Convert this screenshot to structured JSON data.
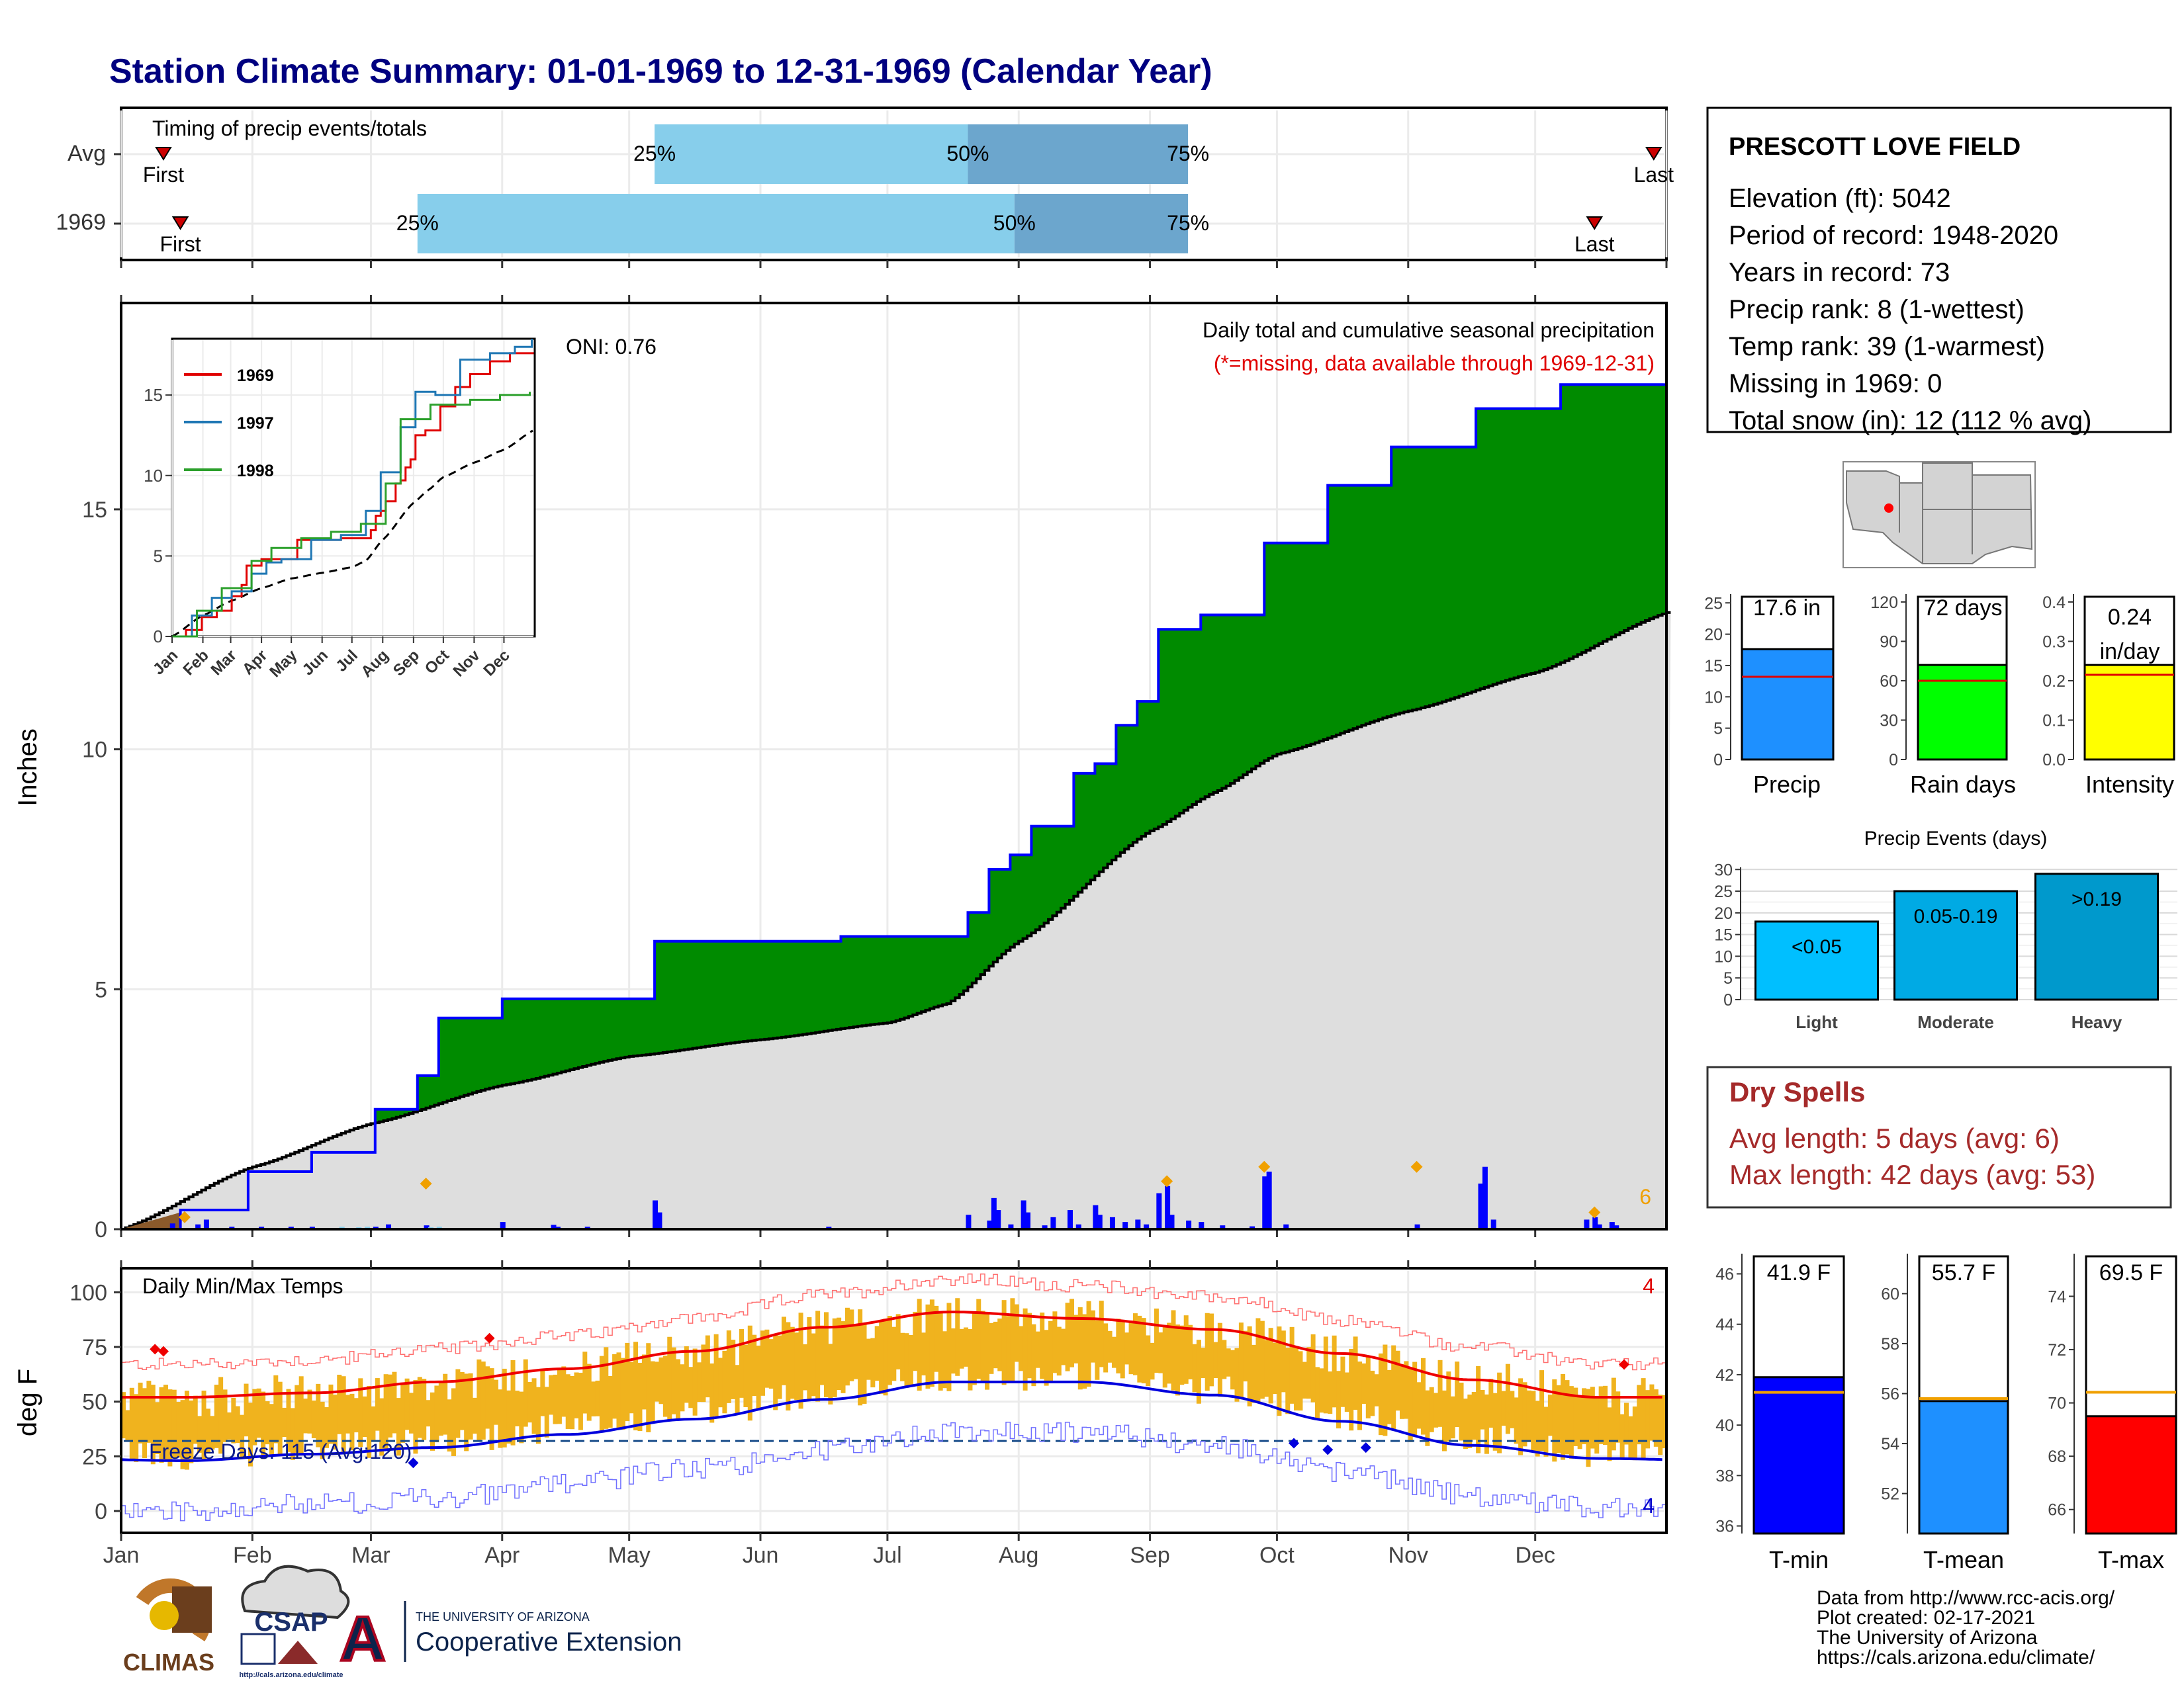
{
  "title": "Station Climate Summary: 01-01-1969 to 12-31-1969 (Calendar Year)",
  "colors": {
    "title": "#000080",
    "q_light": "#87CEEB",
    "q_dark": "#6CA6CD",
    "green": "#008B00",
    "blue_outline": "#0000FF",
    "grey_fill": "#DEDEDE",
    "orange": "#F0B31E",
    "dry_red": "#A52A2A"
  },
  "months": [
    "Jan",
    "Feb",
    "Mar",
    "Apr",
    "May",
    "Jun",
    "Jul",
    "Aug",
    "Sep",
    "Oct",
    "Nov",
    "Dec"
  ],
  "timing": {
    "header": "Timing of precip events/totals",
    "rows": [
      {
        "label": "Avg",
        "first": "First",
        "last": "Last",
        "p25": "25%",
        "p50": "50%",
        "p75": "75%",
        "first_day": 10,
        "last_day": 362,
        "p25_day": 126,
        "p50_day": 200,
        "p75_day": 252
      },
      {
        "label": "1969",
        "first": "First",
        "last": "Last",
        "p25": "25%",
        "p50": "50%",
        "p75": "75%",
        "first_day": 14,
        "last_day": 348,
        "p25_day": 70,
        "p50_day": 211,
        "p75_day": 252
      }
    ]
  },
  "main": {
    "ylabel": "Inches",
    "oni": "ONI: 0.76",
    "header": "Daily total and cumulative seasonal precipitation",
    "note": "(*=missing, data available through 1969-12-31)",
    "corner_count": "6",
    "yticks": [
      "0",
      "5",
      "10",
      "15"
    ],
    "ylim": [
      0,
      19.3
    ]
  },
  "inset": {
    "legend": [
      "1969",
      "1997",
      "1998"
    ],
    "yticks": [
      "0",
      "5",
      "10",
      "15"
    ]
  },
  "temps": {
    "header": "Daily Min/Max Temps",
    "ylabel": "deg F",
    "freeze": "Freeze Days: 115 (Avg:120)",
    "max_count": "4",
    "min_count": "4",
    "yticks": [
      "0",
      "25",
      "50",
      "75",
      "100"
    ]
  },
  "station": {
    "name": "PRESCOTT LOVE FIELD",
    "lines": [
      "Elevation (ft): 5042",
      "Period of record: 1948-2020",
      "Years in record: 73",
      "Precip rank: 8 (1-wettest)",
      "Temp rank: 39 (1-warmest)",
      "Missing in 1969: 0",
      "Total snow (in): 12 (112 % avg)"
    ]
  },
  "bars": {
    "precip": {
      "label": "Precip",
      "value_text": "17.6 in",
      "value": 17.6,
      "avg": 13.2,
      "ymax": 26.4,
      "ticks": [
        "0",
        "5",
        "10",
        "15",
        "20",
        "25"
      ]
    },
    "rain": {
      "label": "Rain days",
      "value_text": "72 days",
      "value": 72,
      "avg": 60,
      "ymax": 126,
      "ticks": [
        "0",
        "30",
        "60",
        "90",
        "120"
      ]
    },
    "intensity": {
      "label": "Intensity",
      "value_text1": "0.24",
      "value_text2": "in/day",
      "value": 0.24,
      "avg": 0.215,
      "ymax": 0.42,
      "ticks": [
        "0.0",
        "0.1",
        "0.2",
        "0.3",
        "0.4"
      ]
    }
  },
  "events": {
    "title": "Precip Events (days)",
    "categories": [
      "Light",
      "Moderate",
      "Heavy"
    ],
    "labels": [
      "<0.05",
      "0.05-0.19",
      ">0.19"
    ],
    "values": [
      18,
      25,
      29
    ],
    "ticks": [
      "0",
      "5",
      "10",
      "15",
      "20",
      "25",
      "30"
    ]
  },
  "dry": {
    "title": "Dry Spells",
    "line1": "Avg length: 5 days (avg: 6)",
    "line2": "Max length: 42 days (avg: 53)"
  },
  "tbars": {
    "tmin": {
      "label": "T-min",
      "value_text": "41.9 F",
      "value": 41.9,
      "avg": 41.3,
      "ticks": [
        "36",
        "38",
        "40",
        "42",
        "44",
        "46"
      ]
    },
    "tmean": {
      "label": "T-mean",
      "value_text": "55.7 F",
      "value": 55.7,
      "avg": 55.8,
      "ticks": [
        "52",
        "54",
        "56",
        "58",
        "60"
      ]
    },
    "tmax": {
      "label": "T-max",
      "value_text": "69.5 F",
      "value": 69.5,
      "avg": 70.4,
      "ticks": [
        "66",
        "68",
        "70",
        "72",
        "74"
      ]
    }
  },
  "footer": {
    "lines": [
      "Data from http://www.rcc-acis.org/",
      "Plot created: 02-17-2021",
      "The University of Arizona",
      "https://cals.arizona.edu/climate/"
    ],
    "climas": "CLIMAS",
    "csap": "CSAP",
    "csap_url": "http://cals.arizona.edu/climate",
    "ua_small": "THE UNIVERSITY OF ARIZONA",
    "ua_big": "Cooperative Extension"
  },
  "chart_data": [
    {
      "type": "area",
      "title": "Daily total and cumulative seasonal precipitation",
      "ylabel": "Inches",
      "ylim": [
        0,
        19.3
      ],
      "series": [
        {
          "name": "1969",
          "x_day": [
            0,
            14,
            30,
            45,
            60,
            70,
            75,
            90,
            110,
            126,
            140,
            170,
            200,
            205,
            210,
            215,
            225,
            230,
            235,
            240,
            245,
            255,
            270,
            285,
            300,
            320,
            340,
            364
          ],
          "values": [
            0,
            0.4,
            1.2,
            1.6,
            2.5,
            3.2,
            4.4,
            4.8,
            4.8,
            6.0,
            6.0,
            6.1,
            6.6,
            7.5,
            7.8,
            8.4,
            9.5,
            9.7,
            10.5,
            11.0,
            12.5,
            12.8,
            14.3,
            15.5,
            16.3,
            17.1,
            17.6,
            17.6
          ]
        }
      ]
    },
    {
      "type": "line",
      "title": "Daily Min/Max Temps",
      "ylabel": "deg F",
      "x": [
        "Jan",
        "Feb",
        "Mar",
        "Apr",
        "May",
        "Jun",
        "Jul",
        "Aug",
        "Sep",
        "Oct",
        "Nov",
        "Dec"
      ],
      "series": [
        {
          "name": "avg max",
          "values": [
            52,
            54,
            59,
            65,
            73,
            84,
            91,
            88,
            83,
            72,
            60,
            52
          ]
        },
        {
          "name": "avg min",
          "values": [
            23,
            26,
            29,
            35,
            42,
            51,
            59,
            59,
            53,
            41,
            30,
            24
          ]
        }
      ]
    },
    {
      "type": "bar",
      "title": "Precip Events (days)",
      "categories": [
        "Light",
        "Moderate",
        "Heavy"
      ],
      "values": [
        18,
        25,
        29
      ]
    }
  ]
}
